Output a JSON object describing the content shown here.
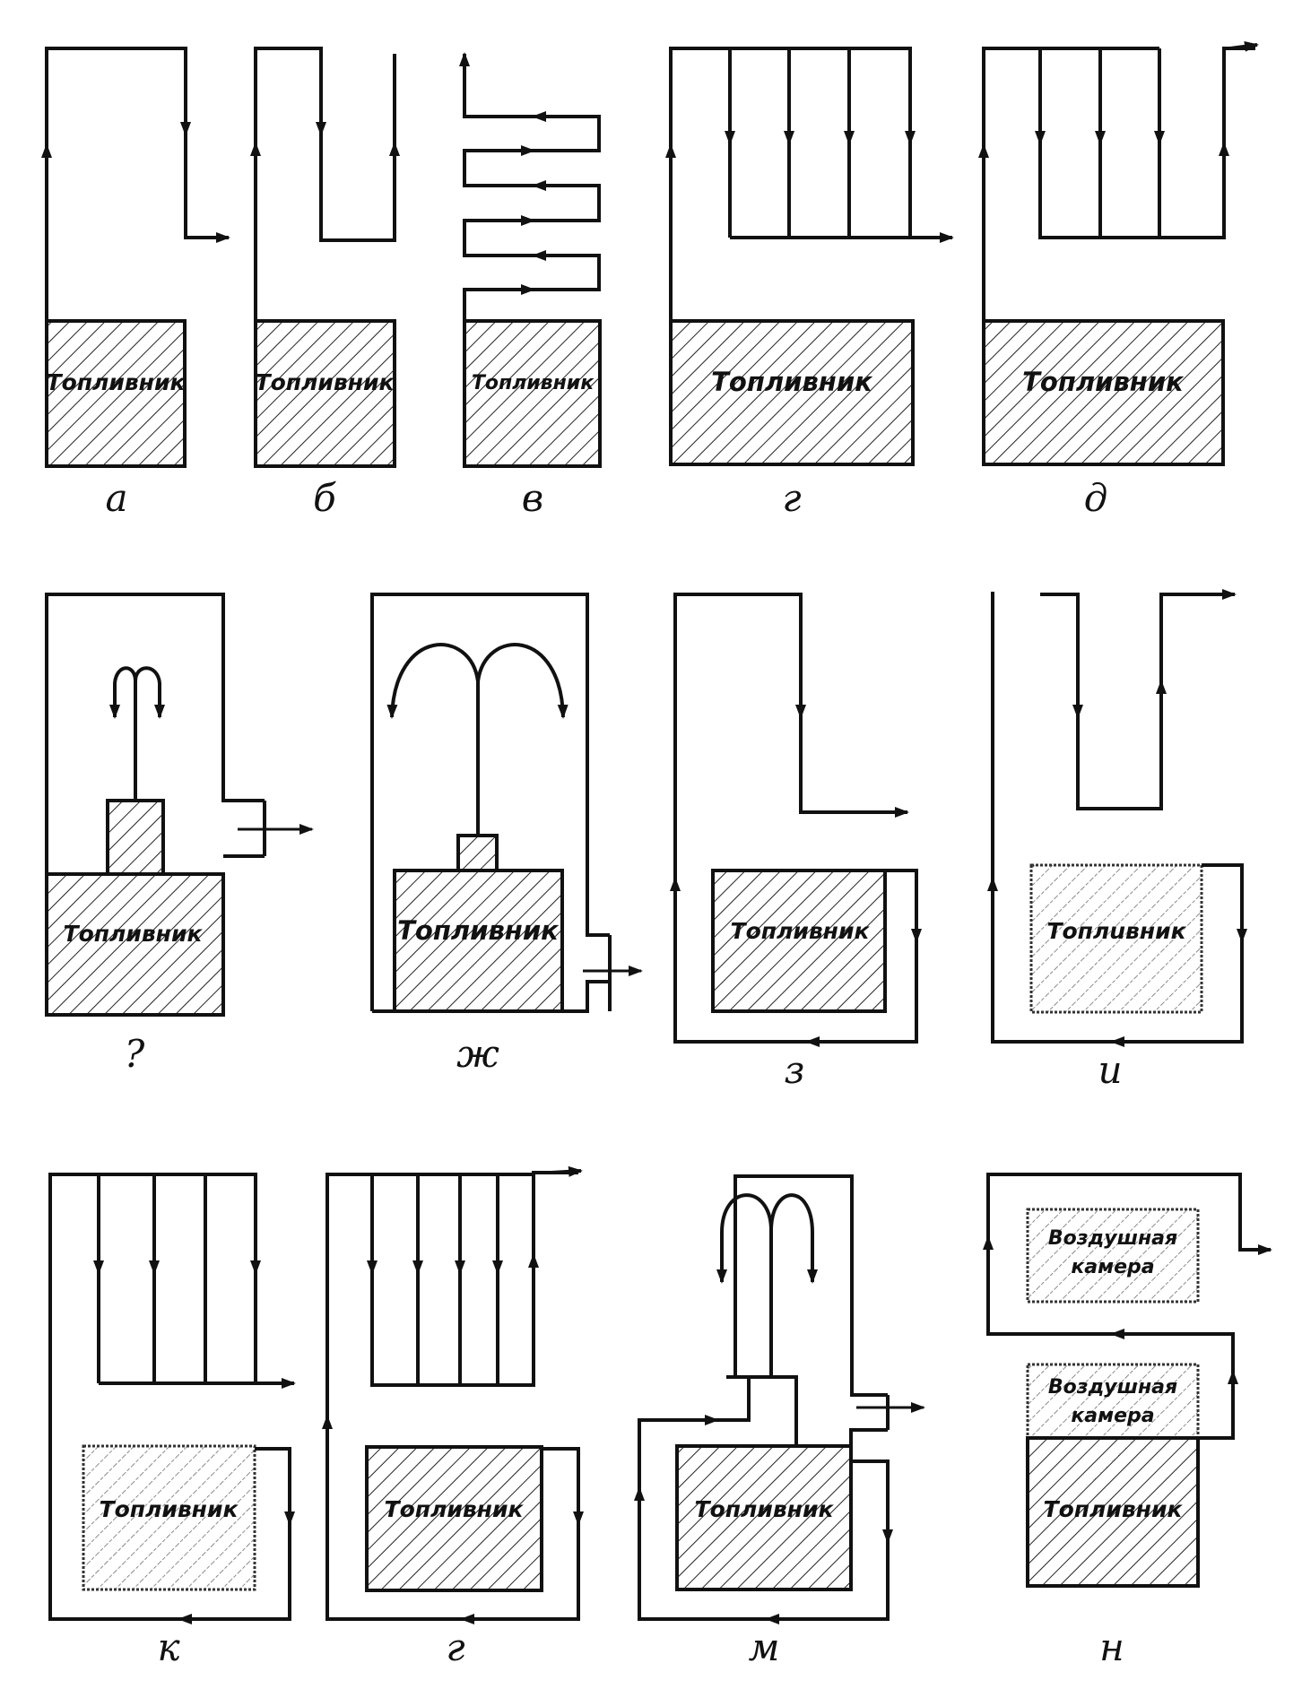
{
  "labels": {
    "a": "а",
    "b": "б",
    "v": "в",
    "g": "г",
    "d": "д",
    "e": "?",
    "zh": "ж",
    "z": "з",
    "i": "и",
    "k": "к",
    "l": "г",
    "m": "м",
    "n": "н"
  },
  "boxes": {
    "a": "Топливник",
    "b": "Топливник",
    "v": "Топливник",
    "g": "Топливник",
    "d": "Топливник",
    "e": "Топливник",
    "zh": "Топливник",
    "z": "Топливник",
    "i": "Топлuвник",
    "k": "Топливник",
    "l": "Топливник",
    "m": "Топливник",
    "n_top_line1": "Воздушная",
    "n_top_line2": "камера",
    "n_mid_line1": "Воздушная",
    "n_mid_line2": "камера",
    "n_bottom": "Топливник"
  }
}
